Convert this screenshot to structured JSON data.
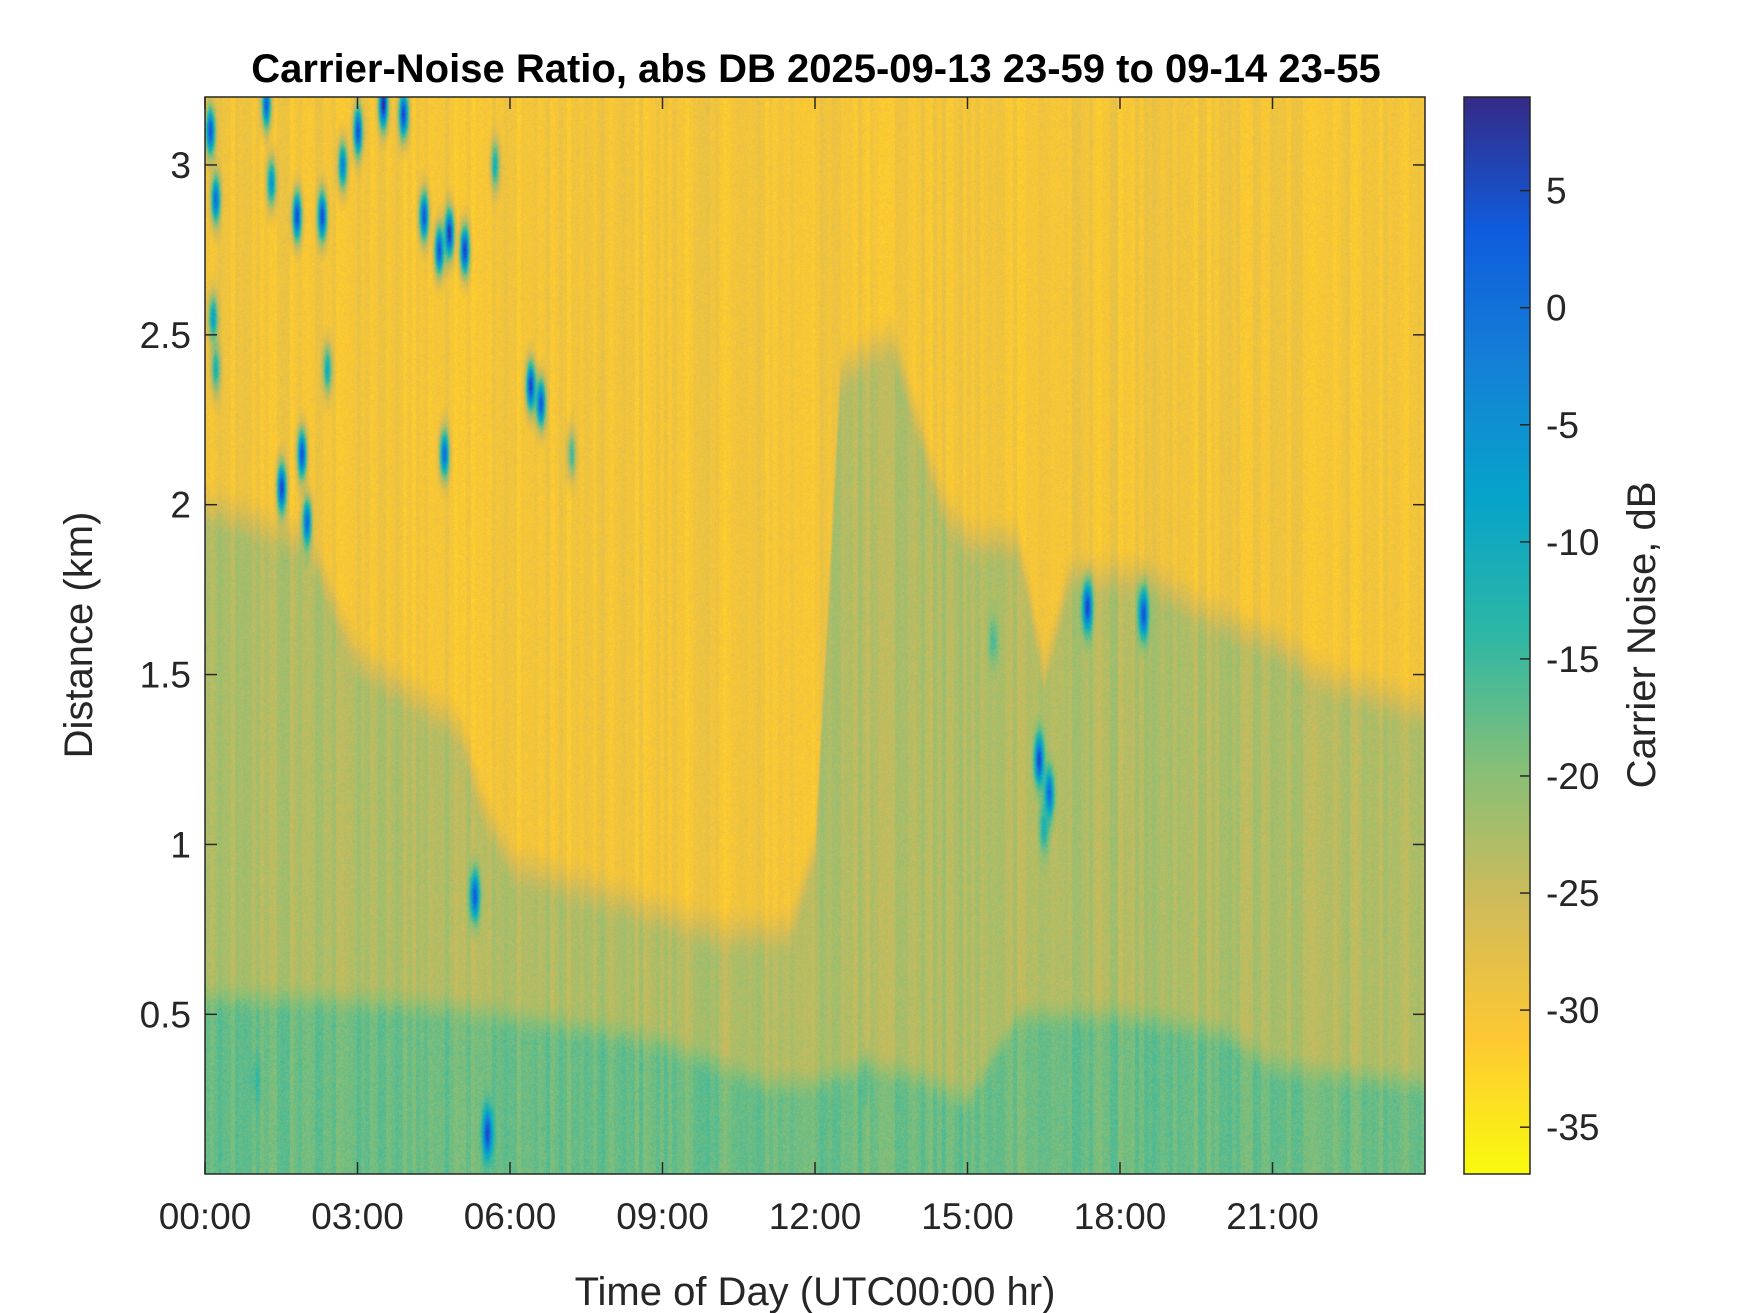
{
  "chart_data": {
    "type": "heatmap",
    "title": "Carrier-Noise Ratio, abs DB 2025-09-13 23-59 to 09-14 23-55",
    "xlabel": "Time of Day (UTC00:00 hr)",
    "ylabel": "Distance (km)",
    "colorbar_label": "Carrier Noise, dB",
    "colormap": "parula",
    "colors": [
      "#352a87",
      "#0f5cdd",
      "#1481d6",
      "#06a4ca",
      "#2eb7a4",
      "#87bf77",
      "#d1bb59",
      "#fec832",
      "#f9fb0e"
    ],
    "xlim": [
      0,
      24
    ],
    "ylim": [
      0.03,
      3.2
    ],
    "clim": [
      -37,
      9
    ],
    "x_ticks": [
      0,
      3,
      6,
      9,
      12,
      15,
      18,
      21
    ],
    "x_tick_labels": [
      "00:00",
      "03:00",
      "06:00",
      "09:00",
      "12:00",
      "15:00",
      "18:00",
      "21:00"
    ],
    "y_ticks": [
      0.5,
      1,
      1.5,
      2,
      2.5,
      3
    ],
    "y_tick_labels": [
      "0.5",
      "1",
      "1.5",
      "2",
      "2.5",
      "3"
    ],
    "colorbar_ticks": [
      5,
      0,
      -5,
      -10,
      -15,
      -20,
      -25,
      -30,
      -35
    ],
    "colorbar_tick_labels": [
      "5",
      "0",
      "-5",
      "-10",
      "-15",
      "-20",
      "-25",
      "-30",
      "-35"
    ],
    "background_db": -30,
    "layers": [
      {
        "name": "near-ground",
        "db": -18,
        "profile": [
          [
            0,
            0.55
          ],
          [
            2,
            0.55
          ],
          [
            5,
            0.52
          ],
          [
            8,
            0.45
          ],
          [
            9,
            0.42
          ],
          [
            11,
            0.3
          ],
          [
            12,
            0.3
          ],
          [
            13,
            0.35
          ],
          [
            14,
            0.32
          ],
          [
            15,
            0.25
          ],
          [
            16,
            0.5
          ],
          [
            18,
            0.5
          ],
          [
            20,
            0.45
          ],
          [
            21,
            0.35
          ],
          [
            24,
            0.3
          ]
        ]
      },
      {
        "name": "boundary-layer",
        "db": -23,
        "profile": [
          [
            0,
            2.0
          ],
          [
            1,
            1.95
          ],
          [
            2,
            1.9
          ],
          [
            3,
            1.55
          ],
          [
            4,
            1.45
          ],
          [
            5,
            1.35
          ],
          [
            5.5,
            1.1
          ],
          [
            6,
            0.95
          ],
          [
            8,
            0.85
          ],
          [
            10,
            0.75
          ],
          [
            11.5,
            0.75
          ],
          [
            12,
            1.0
          ],
          [
            12.5,
            2.4
          ],
          [
            13.5,
            2.5
          ],
          [
            14.5,
            2.0
          ],
          [
            15,
            1.9
          ],
          [
            16,
            1.9
          ],
          [
            16.5,
            1.5
          ],
          [
            17,
            1.8
          ],
          [
            18.5,
            1.8
          ],
          [
            19.5,
            1.7
          ],
          [
            21,
            1.6
          ],
          [
            22,
            1.5
          ],
          [
            24,
            1.4
          ]
        ]
      }
    ],
    "anomalies": [
      {
        "x": 0.1,
        "y": 3.1,
        "db": 4
      },
      {
        "x": 0.2,
        "y": 2.9,
        "db": 0
      },
      {
        "x": 0.15,
        "y": 2.55,
        "db": -8
      },
      {
        "x": 0.2,
        "y": 2.4,
        "db": -12
      },
      {
        "x": 1.2,
        "y": 3.18,
        "db": 2
      },
      {
        "x": 1.3,
        "y": 2.95,
        "db": -5
      },
      {
        "x": 1.8,
        "y": 2.85,
        "db": 5
      },
      {
        "x": 2.3,
        "y": 2.85,
        "db": 4
      },
      {
        "x": 2.7,
        "y": 3.0,
        "db": -2
      },
      {
        "x": 3.0,
        "y": 3.1,
        "db": 3
      },
      {
        "x": 3.5,
        "y": 3.18,
        "db": 8
      },
      {
        "x": 3.9,
        "y": 3.15,
        "db": 6
      },
      {
        "x": 1.5,
        "y": 2.05,
        "db": 5
      },
      {
        "x": 1.9,
        "y": 2.15,
        "db": 4
      },
      {
        "x": 2.0,
        "y": 1.95,
        "db": 2
      },
      {
        "x": 2.4,
        "y": 2.4,
        "db": -10
      },
      {
        "x": 4.3,
        "y": 2.85,
        "db": 3
      },
      {
        "x": 4.6,
        "y": 2.75,
        "db": 4
      },
      {
        "x": 4.8,
        "y": 2.8,
        "db": 7
      },
      {
        "x": 5.1,
        "y": 2.75,
        "db": 7
      },
      {
        "x": 4.7,
        "y": 2.15,
        "db": 0
      },
      {
        "x": 5.7,
        "y": 3.0,
        "db": -12
      },
      {
        "x": 6.4,
        "y": 2.35,
        "db": 6
      },
      {
        "x": 6.6,
        "y": 2.3,
        "db": 4
      },
      {
        "x": 7.2,
        "y": 2.15,
        "db": -15
      },
      {
        "x": 5.3,
        "y": 0.85,
        "db": 4
      },
      {
        "x": 5.55,
        "y": 0.15,
        "db": 6
      },
      {
        "x": 16.4,
        "y": 1.25,
        "db": 5
      },
      {
        "x": 16.6,
        "y": 1.15,
        "db": 1
      },
      {
        "x": 16.5,
        "y": 1.05,
        "db": -12
      },
      {
        "x": 17.35,
        "y": 1.7,
        "db": 6
      },
      {
        "x": 18.45,
        "y": 1.68,
        "db": 4
      },
      {
        "x": 15.5,
        "y": 1.6,
        "db": -16
      },
      {
        "x": 13.0,
        "y": 0.3,
        "db": -16
      },
      {
        "x": 1.0,
        "y": 0.3,
        "db": -15
      }
    ]
  }
}
